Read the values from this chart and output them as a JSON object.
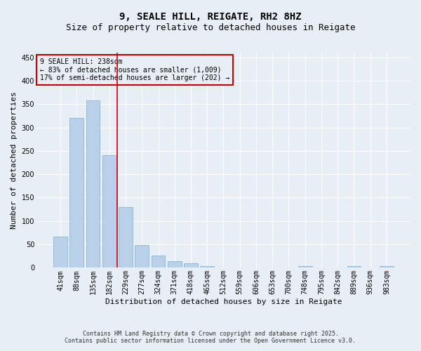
{
  "title_line1": "9, SEALE HILL, REIGATE, RH2 8HZ",
  "title_line2": "Size of property relative to detached houses in Reigate",
  "xlabel": "Distribution of detached houses by size in Reigate",
  "ylabel": "Number of detached properties",
  "bar_color": "#b8d0e8",
  "bar_edge_color": "#7aafd4",
  "bg_color": "#e8eef5",
  "grid_color": "#ffffff",
  "categories": [
    "41sqm",
    "88sqm",
    "135sqm",
    "182sqm",
    "229sqm",
    "277sqm",
    "324sqm",
    "371sqm",
    "418sqm",
    "465sqm",
    "512sqm",
    "559sqm",
    "606sqm",
    "653sqm",
    "700sqm",
    "748sqm",
    "795sqm",
    "842sqm",
    "889sqm",
    "936sqm",
    "983sqm"
  ],
  "values": [
    67,
    320,
    358,
    241,
    130,
    49,
    26,
    14,
    9,
    3,
    1,
    0,
    0,
    0,
    0,
    3,
    0,
    0,
    3,
    0,
    3
  ],
  "property_label": "9 SEALE HILL: 238sqm",
  "annotation_line2": "← 83% of detached houses are smaller (1,009)",
  "annotation_line3": "17% of semi-detached houses are larger (202) →",
  "vline_bin": 4,
  "ylim": [
    0,
    460
  ],
  "yticks": [
    0,
    50,
    100,
    150,
    200,
    250,
    300,
    350,
    400,
    450
  ],
  "footer_line1": "Contains HM Land Registry data © Crown copyright and database right 2025.",
  "footer_line2": "Contains public sector information licensed under the Open Government Licence v3.0.",
  "annotation_box_color": "#cc0000",
  "title_fontsize": 10,
  "subtitle_fontsize": 9,
  "axis_label_fontsize": 8,
  "tick_fontsize": 7,
  "annotation_fontsize": 7,
  "footer_fontsize": 6
}
